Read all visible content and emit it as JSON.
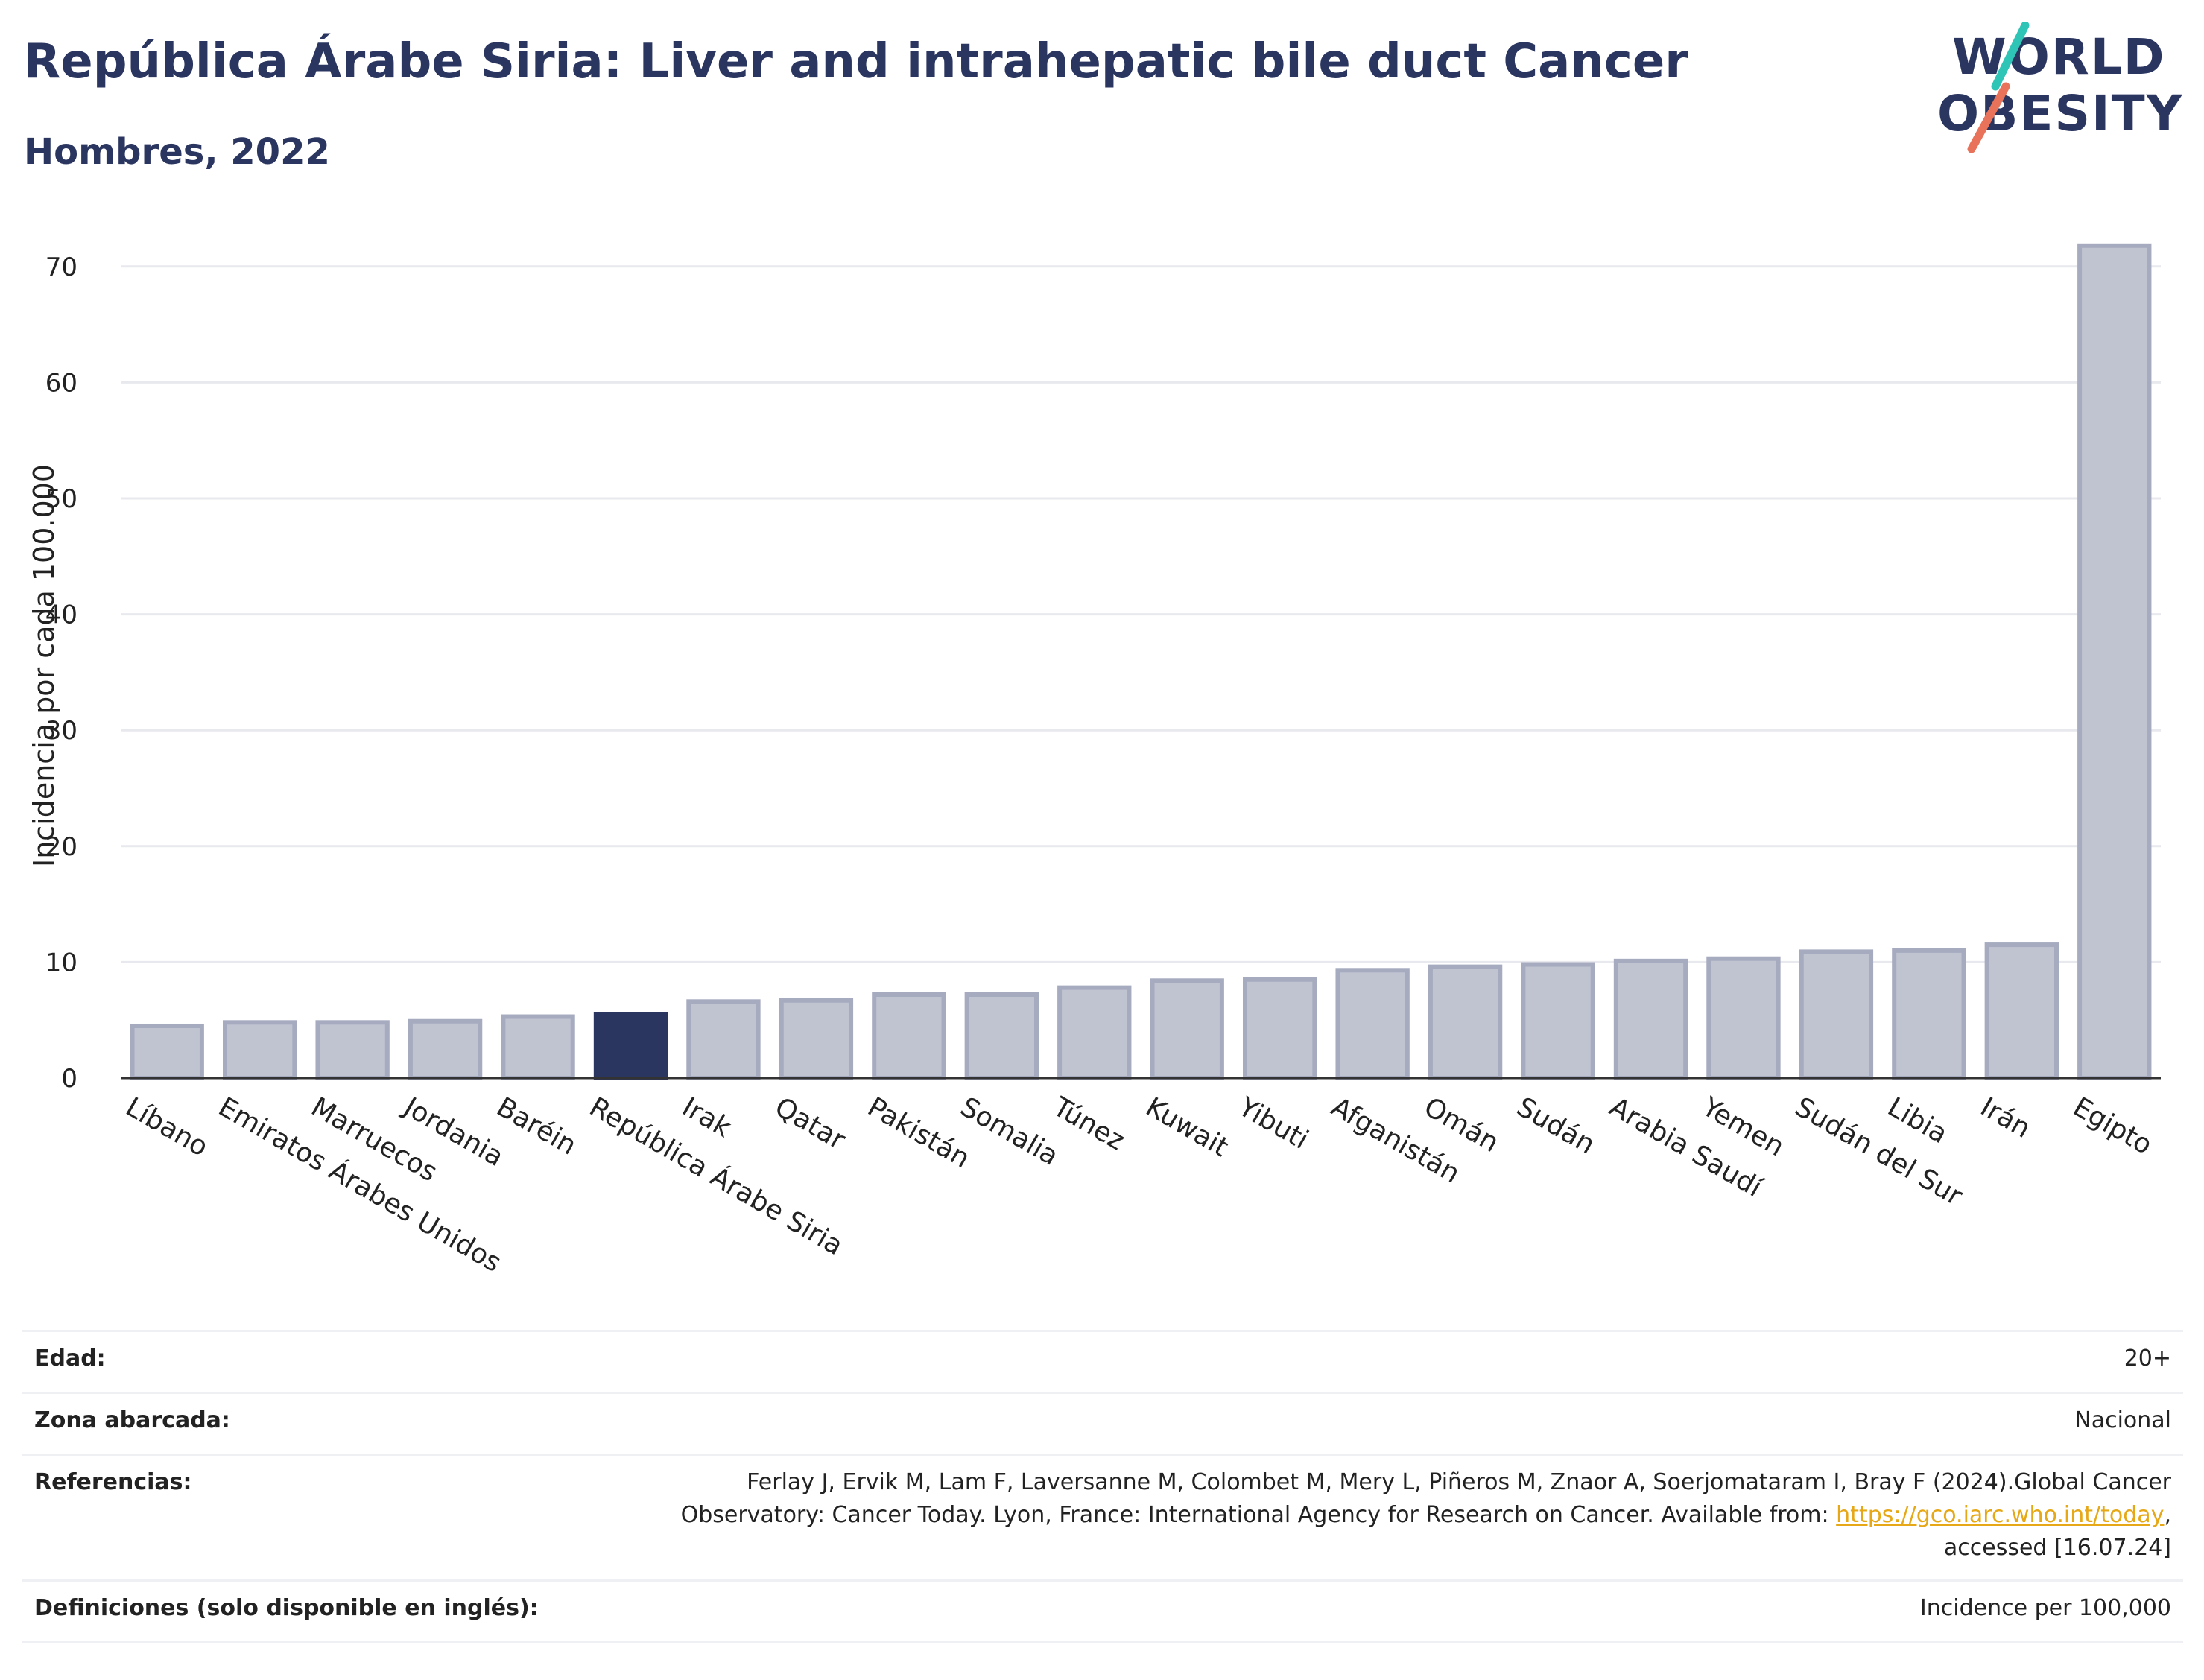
{
  "header": {
    "title": "República Árabe Siria: Liver and intrahepatic bile duct Cancer",
    "subtitle": "Hombres, 2022"
  },
  "logo": {
    "line1": "WORLD",
    "line2": "OBESITY",
    "accent1": "#2ec4b6",
    "accent2": "#e8735a"
  },
  "colors": {
    "highlight": "#2b3660",
    "bar": "#c0c4d1",
    "bar_border": "#a6abbf",
    "grid": "#e8e9ee",
    "axis": "#333333"
  },
  "chart_data": {
    "type": "bar",
    "ylabel": "Incidencia por cada 100.000",
    "ylim": [
      0,
      75
    ],
    "yticks": [
      0,
      10,
      20,
      30,
      40,
      50,
      60,
      70
    ],
    "grid": true,
    "highlight": "República Árabe Siria",
    "categories": [
      "Líbano",
      "Emiratos Árabes Unidos",
      "Marruecos",
      "Jordania",
      "Baréin",
      "República Árabe Siria",
      "Irak",
      "Qatar",
      "Pakistán",
      "Somalia",
      "Túnez",
      "Kuwait",
      "Yibuti",
      "Afganistán",
      "Omán",
      "Sudán",
      "Arabia Saudí",
      "Yemen",
      "Sudán del Sur",
      "Libia",
      "Irán",
      "Egipto"
    ],
    "values": [
      4.5,
      4.8,
      4.8,
      4.9,
      5.3,
      5.5,
      6.6,
      6.7,
      7.2,
      7.2,
      7.8,
      8.4,
      8.5,
      9.3,
      9.6,
      9.8,
      10.1,
      10.3,
      10.9,
      11.0,
      11.5,
      71.8
    ]
  },
  "meta": {
    "age_label": "Edad:",
    "age_value": "20+",
    "zone_label": "Zona abarcada:",
    "zone_value": "Nacional",
    "refs_label": "Referencias:",
    "refs_line1": "Ferlay J, Ervik M, Lam F, Laversanne M, Colombet M, Mery L, Piñeros M, Znaor A, Soerjomataram I, Bray F (2024).Global Cancer",
    "refs_line2": "Observatory: Cancer Today. Lyon, France: International Agency for Research on Cancer. Available from: ",
    "refs_link": "https://gco.iarc.who.int/today",
    "refs_line2_end": ",",
    "refs_line3": "accessed [16.07.24]",
    "defs_label": "Definiciones (solo disponible en inglés):",
    "defs_value": "Incidence per 100,000"
  }
}
